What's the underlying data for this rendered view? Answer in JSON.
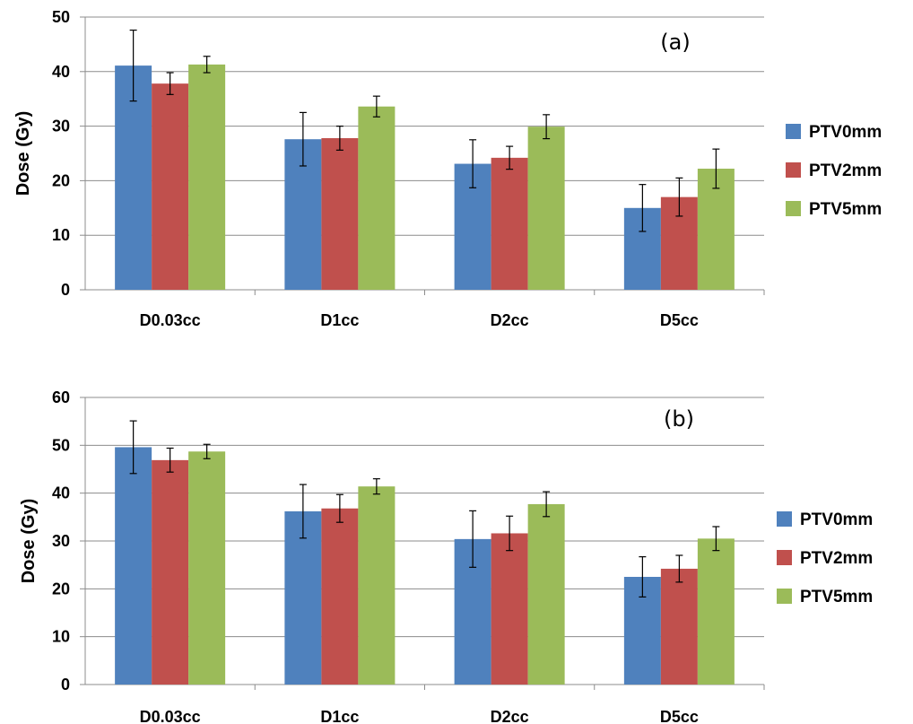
{
  "chart_data": [
    {
      "type": "bar",
      "annotation": "(a)",
      "title": "",
      "xlabel": "",
      "ylabel": "Dose (Gy)",
      "ylim": [
        0,
        50
      ],
      "yticks": [
        0,
        10,
        20,
        30,
        40,
        50
      ],
      "grid": true,
      "legend_position": "right",
      "categories": [
        "D0.03cc",
        "D1cc",
        "D2cc",
        "D5cc"
      ],
      "series": [
        {
          "name": "PTV0mm",
          "color": "#4F81BD",
          "values": [
            41.1,
            27.6,
            23.1,
            15.0
          ],
          "errors": [
            6.5,
            4.9,
            4.4,
            4.3
          ]
        },
        {
          "name": "PTV2mm",
          "color": "#C0504D",
          "values": [
            37.8,
            27.8,
            24.2,
            17.0
          ],
          "errors": [
            2.0,
            2.2,
            2.1,
            3.5
          ]
        },
        {
          "name": "PTV5mm",
          "color": "#9BBB59",
          "values": [
            41.3,
            33.6,
            29.9,
            22.2
          ],
          "errors": [
            1.5,
            1.9,
            2.2,
            3.6
          ]
        }
      ]
    },
    {
      "type": "bar",
      "annotation": "(b)",
      "title": "",
      "xlabel": "",
      "ylabel": "Dose (Gy)",
      "ylim": [
        0,
        60
      ],
      "yticks": [
        0,
        10,
        20,
        30,
        40,
        50,
        60
      ],
      "grid": true,
      "legend_position": "right",
      "categories": [
        "D0.03cc",
        "D1cc",
        "D2cc",
        "D5cc"
      ],
      "series": [
        {
          "name": "PTV0mm",
          "color": "#4F81BD",
          "values": [
            49.6,
            36.2,
            30.4,
            22.5
          ],
          "errors": [
            5.5,
            5.6,
            5.9,
            4.2
          ]
        },
        {
          "name": "PTV2mm",
          "color": "#C0504D",
          "values": [
            46.9,
            36.8,
            31.6,
            24.2
          ],
          "errors": [
            2.5,
            2.9,
            3.6,
            2.8
          ]
        },
        {
          "name": "PTV5mm",
          "color": "#9BBB59",
          "values": [
            48.7,
            41.4,
            37.7,
            30.5
          ],
          "errors": [
            1.5,
            1.6,
            2.6,
            2.5
          ]
        }
      ]
    }
  ]
}
